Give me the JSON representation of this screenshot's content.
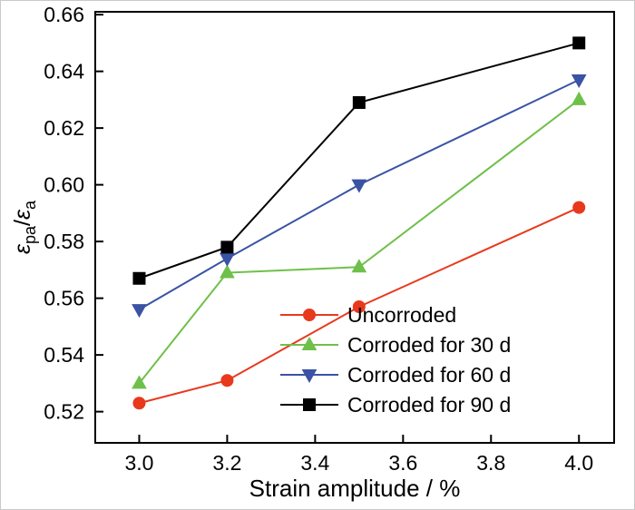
{
  "figure": {
    "background": "#ffffff",
    "frame_color": "#000000"
  },
  "chart_data": {
    "type": "line",
    "title": "",
    "xlabel": "Strain amplitude / %",
    "ylabel_parts": [
      {
        "text": "ε",
        "italic": true,
        "sub": false
      },
      {
        "text": "pa",
        "italic": false,
        "sub": true
      },
      {
        "text": "/",
        "italic": false,
        "sub": false
      },
      {
        "text": "ε",
        "italic": true,
        "sub": false
      },
      {
        "text": "a",
        "italic": false,
        "sub": true
      }
    ],
    "x": [
      3.0,
      3.2,
      3.5,
      4.0
    ],
    "series": [
      {
        "name": "Uncorroded",
        "color": "#e8391d",
        "marker": "circle",
        "values": [
          0.523,
          0.531,
          0.557,
          0.592
        ]
      },
      {
        "name": "Corroded for 30 d",
        "color": "#6fc04a",
        "marker": "triangle-up",
        "values": [
          0.53,
          0.569,
          0.571,
          0.63
        ]
      },
      {
        "name": "Corroded for 60 d",
        "color": "#3a53a4",
        "marker": "triangle-down",
        "values": [
          0.556,
          0.574,
          0.6,
          0.637
        ]
      },
      {
        "name": "Corroded for 90 d",
        "color": "#000000",
        "marker": "square",
        "values": [
          0.567,
          0.578,
          0.629,
          0.65
        ]
      }
    ],
    "xticks": [
      3.0,
      3.2,
      3.4,
      3.6,
      3.8,
      4.0
    ],
    "xtick_labels": [
      "3.0",
      "3.2",
      "3.4",
      "3.6",
      "3.8",
      "4.0"
    ],
    "yticks": [
      0.52,
      0.54,
      0.56,
      0.58,
      0.6,
      0.62,
      0.64,
      0.66
    ],
    "ytick_labels": [
      "0.52",
      "0.54",
      "0.56",
      "0.58",
      "0.60",
      "0.62",
      "0.64",
      "0.66"
    ],
    "xlim": [
      2.9,
      4.08
    ],
    "ylim": [
      0.509,
      0.661
    ],
    "grid": false,
    "legend_position": "inside-lower-right"
  }
}
